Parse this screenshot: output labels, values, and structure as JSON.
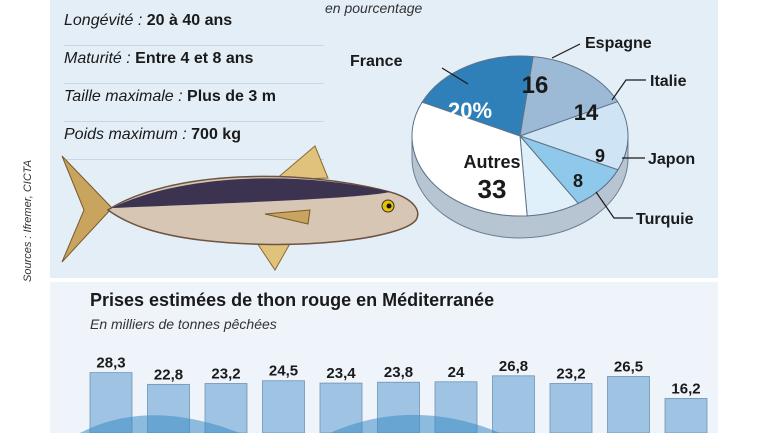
{
  "facts": [
    {
      "label": "Longévité :",
      "value": "20 à 40 ans"
    },
    {
      "label": "Maturité :",
      "value": "Entre 4 et 8 ans"
    },
    {
      "label": "Taille maximale :",
      "value": "Plus de 3 m"
    },
    {
      "label": "Poids maximum :",
      "value": "700 kg"
    }
  ],
  "source": "Sources : Ifremer, CICTA",
  "colors": {
    "panel": "#e4eef7",
    "bar": "#9fc3e3",
    "pie_france": "#2f7fb8",
    "pie_espagne": "#9cb9d6",
    "pie_italie": "#cfe4f5",
    "pie_japon": "#8ec8ea",
    "pie_turquie": "#dff0fb",
    "pie_autres": "#ffffff"
  },
  "chart_data": [
    {
      "type": "pie",
      "subtitle": "en pourcentage",
      "slices": [
        {
          "name": "France",
          "value": 20,
          "label": "20%"
        },
        {
          "name": "Espagne",
          "value": 16,
          "label": "16"
        },
        {
          "name": "Italie",
          "value": 14,
          "label": "14"
        },
        {
          "name": "Japon",
          "value": 9,
          "label": "9"
        },
        {
          "name": "Turquie",
          "value": 8,
          "label": "8"
        },
        {
          "name": "Autres",
          "value": 33,
          "label": "33"
        }
      ]
    },
    {
      "type": "bar",
      "title": "Prises estimées de thon rouge en Méditerranée",
      "subtitle": "En milliers de tonnes pêchées",
      "values": [
        28.3,
        22.8,
        23.2,
        24.5,
        23.4,
        23.8,
        24,
        26.8,
        23.2,
        26.5,
        16.2
      ],
      "labels": [
        "28,3",
        "22,8",
        "23,2",
        "24,5",
        "23,4",
        "23,8",
        "24",
        "26,8",
        "23,2",
        "26,5",
        "16,2"
      ]
    }
  ]
}
